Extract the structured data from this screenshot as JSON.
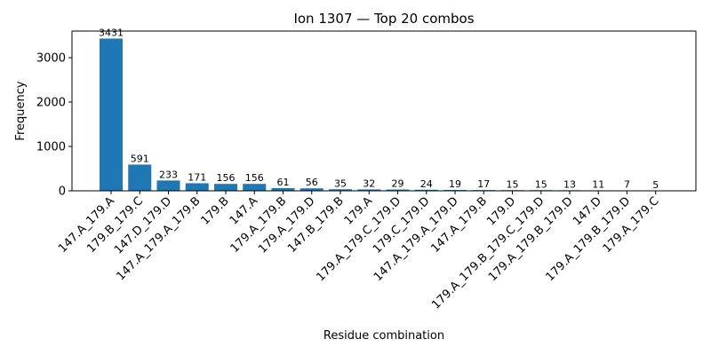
{
  "chart_data": {
    "type": "bar",
    "title": "Ion 1307 — Top 20 combos",
    "xlabel": "Residue combination",
    "ylabel": "Frequency",
    "ylim": [
      0,
      3600
    ],
    "yticks": [
      0,
      1000,
      2000,
      3000
    ],
    "grid": false,
    "bar_color": "#1f77b4",
    "categories": [
      "147.A_179.A",
      "179.B_179.C",
      "147.D_179.D",
      "147.A_179.A_179.B",
      "179.B",
      "147.A",
      "179.A_179.B",
      "179.A_179.D",
      "147.B_179.B",
      "179.A",
      "179.A_179.C_179.D",
      "179.C_179.D",
      "147.A_179.A_179.D",
      "147.A_179.B",
      "179.D",
      "179.A_179.B_179.C_179.D",
      "179.A_179.B_179.D",
      "147.D",
      "179.A_179.B_179.D",
      "179.A_179.C"
    ],
    "values": [
      3431,
      591,
      233,
      171,
      156,
      156,
      61,
      56,
      35,
      32,
      29,
      24,
      19,
      17,
      15,
      15,
      13,
      11,
      7,
      5
    ]
  }
}
